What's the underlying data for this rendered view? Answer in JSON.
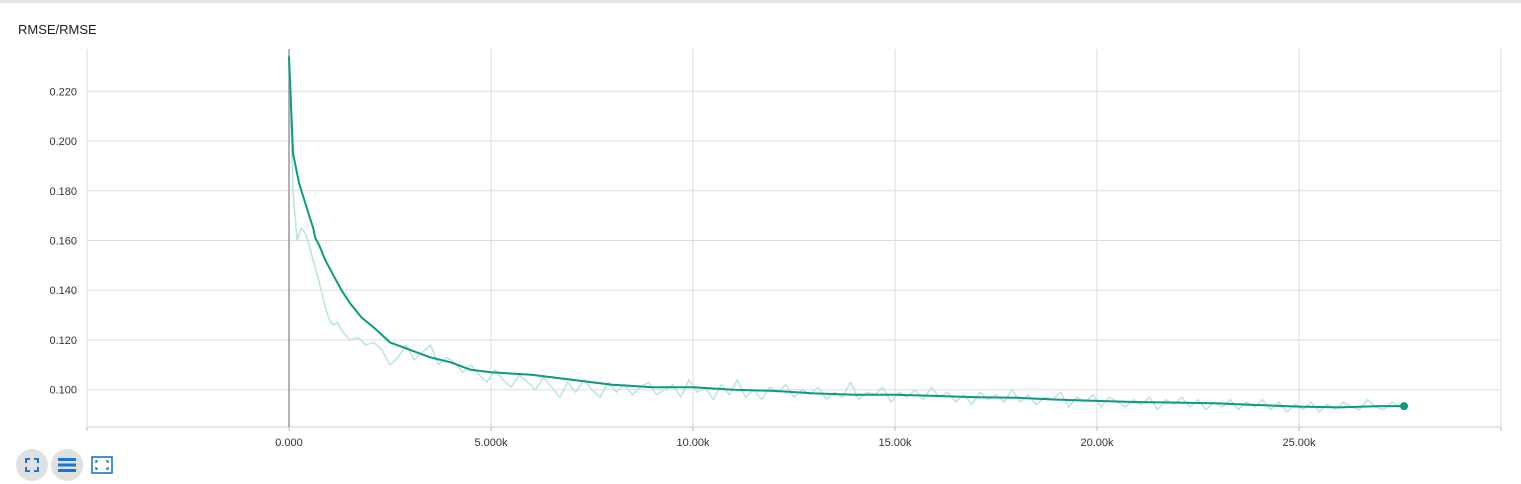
{
  "card": {
    "title": "RMSE/RMSE"
  },
  "colors": {
    "smoothed": "#0e9980",
    "raw": "#bfe5de",
    "grid": "#dddddd",
    "axis": "#999999",
    "icon": "#1976d2"
  },
  "toolbar": {
    "buttons": [
      {
        "name": "fit-domain-button",
        "icon": "fullscreen-icon"
      },
      {
        "name": "toggle-log-scale-button",
        "icon": "lines-icon"
      },
      {
        "name": "expand-chart-button",
        "icon": "expand-icon"
      }
    ]
  },
  "chart_data": {
    "type": "line",
    "title": "RMSE/RMSE",
    "xlabel": "",
    "ylabel": "",
    "xlim": [
      -5000,
      30000
    ],
    "ylim": [
      0.085,
      0.237
    ],
    "x_ticks": [
      0,
      5000,
      10000,
      15000,
      20000,
      25000
    ],
    "x_tick_labels": [
      "0.000",
      "5.000k",
      "10.00k",
      "15.00k",
      "20.00k",
      "25.00k"
    ],
    "y_ticks": [
      0.1,
      0.12,
      0.14,
      0.16,
      0.18,
      0.2,
      0.22
    ],
    "y_tick_labels": [
      "0.100",
      "0.120",
      "0.140",
      "0.160",
      "0.180",
      "0.200",
      "0.220"
    ],
    "grid": true,
    "series": [
      {
        "role": "smoothed",
        "x": [
          0,
          100,
          250,
          500,
          600,
          650,
          750,
          900,
          1100,
          1300,
          1500,
          1800,
          2100,
          2500,
          3000,
          3500,
          4000,
          4500,
          5000,
          6000,
          7000,
          8000,
          9000,
          10000,
          11000,
          12000,
          13000,
          14000,
          15000,
          16000,
          17000,
          18000,
          19000,
          20000,
          21000,
          22000,
          23000,
          24000,
          25000,
          26000,
          27000,
          27600
        ],
        "y": [
          0.234,
          0.195,
          0.183,
          0.17,
          0.165,
          0.161,
          0.158,
          0.152,
          0.146,
          0.14,
          0.135,
          0.129,
          0.125,
          0.119,
          0.116,
          0.113,
          0.111,
          0.108,
          0.107,
          0.106,
          0.104,
          0.102,
          0.101,
          0.101,
          0.1,
          0.0995,
          0.0985,
          0.098,
          0.098,
          0.0975,
          0.097,
          0.0968,
          0.096,
          0.0955,
          0.095,
          0.0948,
          0.0945,
          0.0938,
          0.0932,
          0.0929,
          0.0934,
          0.0934
        ]
      },
      {
        "role": "raw",
        "x": [
          0,
          100,
          200,
          300,
          400,
          500,
          600,
          700,
          800,
          900,
          1000,
          1100,
          1200,
          1300,
          1500,
          1700,
          1900,
          2100,
          2300,
          2500,
          2700,
          2900,
          3100,
          3300,
          3500,
          3700,
          3900,
          4100,
          4300,
          4500,
          4700,
          4900,
          5100,
          5300,
          5500,
          5700,
          5900,
          6100,
          6300,
          6500,
          6700,
          6900,
          7100,
          7300,
          7500,
          7700,
          7900,
          8100,
          8300,
          8500,
          8700,
          8900,
          9100,
          9300,
          9500,
          9700,
          9900,
          10100,
          10300,
          10500,
          10700,
          10900,
          11100,
          11300,
          11500,
          11700,
          11900,
          12100,
          12300,
          12500,
          12700,
          12900,
          13100,
          13300,
          13500,
          13700,
          13900,
          14100,
          14300,
          14500,
          14700,
          14900,
          15100,
          15300,
          15500,
          15700,
          15900,
          16100,
          16300,
          16500,
          16700,
          16900,
          17100,
          17300,
          17500,
          17700,
          17900,
          18100,
          18300,
          18500,
          18700,
          18900,
          19100,
          19300,
          19500,
          19700,
          19900,
          20100,
          20300,
          20500,
          20700,
          20900,
          21100,
          21300,
          21500,
          21700,
          21900,
          22100,
          22300,
          22500,
          22700,
          22900,
          23100,
          23300,
          23500,
          23700,
          23900,
          24100,
          24300,
          24500,
          24700,
          24900,
          25100,
          25300,
          25500,
          25700,
          25900,
          26100,
          26300,
          26500,
          26700,
          26900,
          27100,
          27300,
          27500,
          27600
        ],
        "y": [
          0.234,
          0.18,
          0.16,
          0.165,
          0.163,
          0.158,
          0.152,
          0.146,
          0.14,
          0.133,
          0.128,
          0.126,
          0.127,
          0.124,
          0.12,
          0.121,
          0.118,
          0.119,
          0.116,
          0.11,
          0.113,
          0.118,
          0.112,
          0.115,
          0.118,
          0.11,
          0.113,
          0.111,
          0.107,
          0.11,
          0.106,
          0.103,
          0.108,
          0.104,
          0.101,
          0.106,
          0.103,
          0.1,
          0.105,
          0.101,
          0.097,
          0.103,
          0.099,
          0.104,
          0.1,
          0.097,
          0.103,
          0.099,
          0.102,
          0.098,
          0.101,
          0.103,
          0.098,
          0.1,
          0.102,
          0.097,
          0.104,
          0.099,
          0.101,
          0.096,
          0.102,
          0.098,
          0.104,
          0.097,
          0.1,
          0.096,
          0.101,
          0.099,
          0.102,
          0.097,
          0.1,
          0.098,
          0.101,
          0.096,
          0.099,
          0.097,
          0.103,
          0.096,
          0.099,
          0.098,
          0.101,
          0.095,
          0.099,
          0.097,
          0.1,
          0.096,
          0.101,
          0.097,
          0.099,
          0.095,
          0.098,
          0.094,
          0.099,
          0.096,
          0.098,
          0.095,
          0.1,
          0.095,
          0.098,
          0.094,
          0.097,
          0.096,
          0.099,
          0.093,
          0.097,
          0.095,
          0.098,
          0.093,
          0.097,
          0.095,
          0.093,
          0.096,
          0.094,
          0.097,
          0.092,
          0.096,
          0.094,
          0.097,
          0.093,
          0.096,
          0.092,
          0.095,
          0.093,
          0.096,
          0.092,
          0.095,
          0.093,
          0.096,
          0.092,
          0.095,
          0.091,
          0.094,
          0.092,
          0.095,
          0.091,
          0.094,
          0.092,
          0.095,
          0.093,
          0.092,
          0.096,
          0.093,
          0.092,
          0.095,
          0.093,
          0.0934
        ]
      }
    ]
  }
}
